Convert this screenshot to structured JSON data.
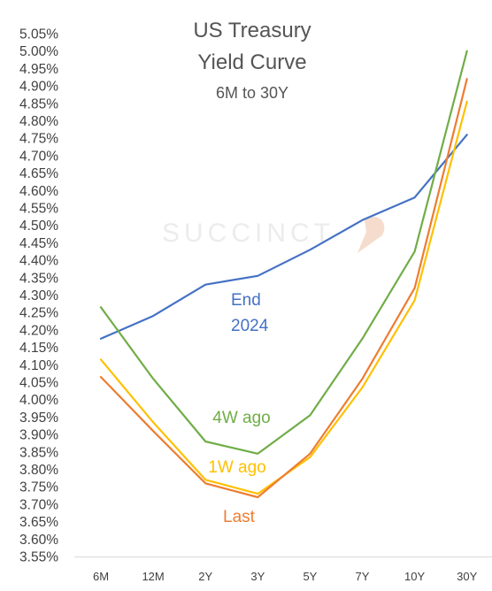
{
  "chart_data": {
    "type": "line",
    "title_lines": [
      "US Treasury",
      "Yield Curve"
    ],
    "subtitle": "6M to 30Y",
    "watermark": "SUCCINCT",
    "xlabel": "",
    "ylabel": "",
    "categories": [
      "6M",
      "12M",
      "2Y",
      "3Y",
      "5Y",
      "7Y",
      "10Y",
      "30Y"
    ],
    "y_ticks": [
      "5.05%",
      "5.00%",
      "4.95%",
      "4.90%",
      "4.85%",
      "4.80%",
      "4.75%",
      "4.70%",
      "4.65%",
      "4.60%",
      "4.55%",
      "4.50%",
      "4.45%",
      "4.40%",
      "4.35%",
      "4.30%",
      "4.25%",
      "4.20%",
      "4.15%",
      "4.10%",
      "4.05%",
      "4.00%",
      "3.95%",
      "3.90%",
      "3.85%",
      "3.80%",
      "3.75%",
      "3.70%",
      "3.65%",
      "3.60%",
      "3.55%"
    ],
    "ylim": [
      3.55,
      5.05
    ],
    "grid": false,
    "legend": "inline labels",
    "series": [
      {
        "name": "End 2024",
        "label_lines": [
          "End",
          "2024"
        ],
        "color": "#4472c4",
        "values": [
          4.175,
          4.24,
          4.33,
          4.355,
          4.43,
          4.515,
          4.58,
          4.76
        ]
      },
      {
        "name": "4W ago",
        "label_lines": [
          "4W ago"
        ],
        "color": "#70ad47",
        "values": [
          4.265,
          4.06,
          3.88,
          3.845,
          3.955,
          4.175,
          4.425,
          5.0
        ]
      },
      {
        "name": "1W ago",
        "label_lines": [
          "1W ago"
        ],
        "color": "#ffc000",
        "values": [
          4.115,
          3.935,
          3.77,
          3.73,
          3.835,
          4.035,
          4.285,
          4.855
        ]
      },
      {
        "name": "Last",
        "label_lines": [
          "Last"
        ],
        "color": "#ed7d31",
        "values": [
          4.065,
          3.91,
          3.76,
          3.72,
          3.845,
          4.06,
          4.32,
          4.92
        ]
      }
    ]
  }
}
